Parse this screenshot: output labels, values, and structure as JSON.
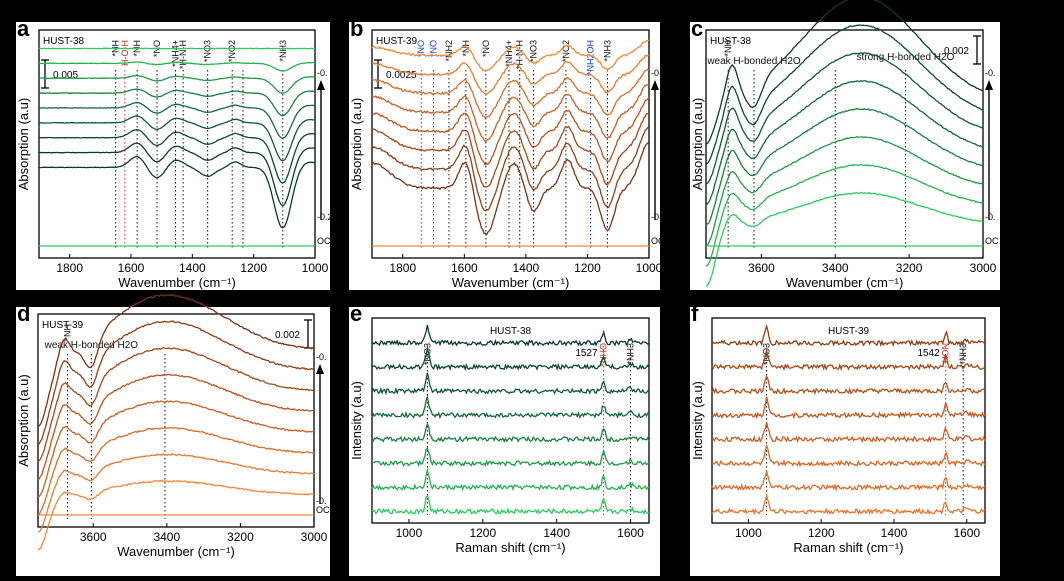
{
  "panels": [
    {
      "letter": "a",
      "tag": "HUST-38",
      "xlabel": "Wavenumber (cm⁻¹)",
      "ylabel": "Absorption (a.u)",
      "xlim": [
        1900,
        1000
      ],
      "ticks": [
        "1800",
        "1600",
        "1400",
        "1200",
        "1000"
      ],
      "scale_bar": "0.005",
      "right_labels": [
        "-0.",
        "-0.2",
        "OC"
      ],
      "peak_lines": [
        {
          "x": 1650,
          "label": "*NH",
          "color": "#111111"
        },
        {
          "x": 1620,
          "label": "H-O-H",
          "color": "#c0302a"
        },
        {
          "x": 1580,
          "label": "*NH",
          "color": "#111111"
        },
        {
          "x": 1515,
          "label": "*NO",
          "color": "#111111"
        },
        {
          "x": 1455,
          "label": "*NH4+",
          "color": "#111111"
        },
        {
          "x": 1430,
          "label": "*H-N-H",
          "color": "#111111"
        },
        {
          "x": 1350,
          "label": "*NO3",
          "color": "#111111"
        },
        {
          "x": 1270,
          "label": "*NO2",
          "color": "#111111"
        },
        {
          "x": 1235,
          "label": "",
          "color": "#111111"
        },
        {
          "x": 1105,
          "label": "*NH3",
          "color": "#111111"
        }
      ],
      "palette": [
        "#2ecc5e",
        "#26b352",
        "#1e9a48",
        "#17803f",
        "#126a38",
        "#0f5733",
        "#0c4a2e",
        "#093c28",
        "#0b3b30"
      ]
    },
    {
      "letter": "b",
      "tag": "HUST-39",
      "xlabel": "Wavenumber (cm⁻¹)",
      "ylabel": "Absorption (a.u)",
      "xlim": [
        1900,
        1000
      ],
      "ticks": [
        "1800",
        "1600",
        "1400",
        "1200",
        "1000"
      ],
      "scale_bar": "0.0025",
      "right_labels": [
        "-0.",
        "-0.",
        "OC"
      ],
      "peak_lines": [
        {
          "x": 1740,
          "label": "*NO",
          "color": "#1d3fc4"
        },
        {
          "x": 1700,
          "label": "*NO",
          "color": "#1d3fc4"
        },
        {
          "x": 1650,
          "label": "*NH2",
          "color": "#111111"
        },
        {
          "x": 1595,
          "label": "*NH",
          "color": "#111111"
        },
        {
          "x": 1530,
          "label": "*NO",
          "color": "#111111"
        },
        {
          "x": 1455,
          "label": "*NH4+",
          "color": "#111111"
        },
        {
          "x": 1420,
          "label": "*H-N-H",
          "color": "#111111"
        },
        {
          "x": 1375,
          "label": "*NO3",
          "color": "#111111"
        },
        {
          "x": 1270,
          "label": "*NO2",
          "color": "#111111"
        },
        {
          "x": 1190,
          "label": "*NH2OH",
          "color": "#1d3fc4"
        },
        {
          "x": 1135,
          "label": "*NH3",
          "color": "#111111"
        }
      ],
      "palette": [
        "#f08a3a",
        "#e47c31",
        "#d66f29",
        "#c76223",
        "#b6561e",
        "#a24a1a",
        "#8f3f17",
        "#7a3414"
      ]
    },
    {
      "letter": "c",
      "tag": "HUST-38",
      "xlabel": "Wavenumber (cm⁻¹)",
      "ylabel": "Absorption (a.u)",
      "xlim": [
        3750,
        3000
      ],
      "ticks": [
        "3600",
        "3400",
        "3200",
        "3000"
      ],
      "scale_bar": "0.002",
      "right_labels": [
        "-0.",
        "-0.",
        "OC"
      ],
      "peak_lines": [
        {
          "x": 3690,
          "label": "*NH",
          "color": "#111111"
        },
        {
          "x": 3620,
          "label": "weak H-bonded H2O",
          "color": "#111111"
        },
        {
          "x": 3400,
          "label": "",
          "color": "#111111"
        },
        {
          "x": 3210,
          "label": "strong H-bonded H2O",
          "color": "#111111"
        }
      ],
      "palette": [
        "#2ecc5e",
        "#26b352",
        "#1e9a48",
        "#17803f",
        "#126a38",
        "#0f5733",
        "#0c4a2e",
        "#093c28"
      ]
    },
    {
      "letter": "d",
      "tag": "HUST-39",
      "xlabel": "Wavenumber (cm⁻¹)",
      "ylabel": "Absorption (a.u)",
      "xlim": [
        3750,
        3000
      ],
      "ticks": [
        "3600",
        "3400",
        "3200",
        "3000"
      ],
      "scale_bar": "0.002",
      "right_labels": [
        "-0.",
        "-0.",
        "OC"
      ],
      "peak_lines": [
        {
          "x": 3670,
          "label": "*NH",
          "color": "#111111"
        },
        {
          "x": 3605,
          "label": "weak H-bonded H2O",
          "color": "#111111"
        },
        {
          "x": 3405,
          "label": "",
          "color": "#111111"
        }
      ],
      "palette": [
        "#f08a3a",
        "#e47c31",
        "#d66f29",
        "#c76223",
        "#b6561e",
        "#a24a1a",
        "#8f3f17",
        "#7a3414"
      ]
    },
    {
      "letter": "e",
      "tag": "HUST-38",
      "xlabel": "Raman shift (cm⁻¹)",
      "ylabel": "Intensity (a.u)",
      "xlim": [
        900,
        1650
      ],
      "ticks": [
        "1000",
        "1200",
        "1400",
        "1600"
      ],
      "scale_bar": "",
      "right_labels": [],
      "peak_number": "1527",
      "peak_lines": [
        {
          "x": 1050,
          "label": "*NO3",
          "color": "#111111"
        },
        {
          "x": 1527,
          "label": "*NHO",
          "color": "#c0302a"
        },
        {
          "x": 1600,
          "label": "*NH3",
          "color": "#111111"
        }
      ],
      "palette": [
        "#2ecc5e",
        "#26b352",
        "#1e9a48",
        "#17803f",
        "#126a38",
        "#0f5733",
        "#0c4a2e",
        "#0b3b30"
      ]
    },
    {
      "letter": "f",
      "tag": "HUST-39",
      "xlabel": "Raman shift (cm⁻¹)",
      "ylabel": "Intensity (a.u)",
      "xlim": [
        900,
        1650
      ],
      "ticks": [
        "1000",
        "1200",
        "1400",
        "1600"
      ],
      "scale_bar": "",
      "right_labels": [],
      "peak_number": "1542",
      "peak_lines": [
        {
          "x": 1050,
          "label": "*NO3",
          "color": "#111111"
        },
        {
          "x": 1542,
          "label": "HON",
          "color": "#c0302a"
        },
        {
          "x": 1590,
          "label": "*NH3",
          "color": "#111111"
        }
      ],
      "palette": [
        "#e8732a",
        "#de6d26",
        "#d46723",
        "#c9601f",
        "#bd591c",
        "#b05218",
        "#a34b15",
        "#8f3f12"
      ]
    }
  ],
  "chart_data": [
    {
      "type": "line",
      "panel": "a",
      "title": "",
      "xlabel": "Wavenumber (cm⁻¹)",
      "ylabel": "Absorption (a.u)",
      "xlim": [
        1900,
        1000
      ],
      "series_count": 9,
      "features": {
        "peak_maxima": [
          1580,
          1455,
          1260
        ],
        "minima": [
          1515,
          1350,
          1105
        ]
      },
      "grid": false
    },
    {
      "type": "line",
      "panel": "b",
      "title": "",
      "xlabel": "Wavenumber (cm⁻¹)",
      "ylabel": "Absorption (a.u)",
      "xlim": [
        1900,
        1000
      ],
      "series_count": 8,
      "features": {
        "peak_maxima": [
          1595,
          1440,
          1270
        ],
        "minima": [
          1530,
          1375,
          1135
        ]
      },
      "grid": false
    },
    {
      "type": "line",
      "panel": "c",
      "title": "",
      "xlabel": "Wavenumber (cm⁻¹)",
      "ylabel": "Absorption (a.u)",
      "xlim": [
        3750,
        3000
      ],
      "series_count": 8,
      "features": {
        "broad_maximum": 3330
      },
      "grid": false
    },
    {
      "type": "line",
      "panel": "d",
      "title": "",
      "xlabel": "Wavenumber (cm⁻¹)",
      "ylabel": "Absorption (a.u)",
      "xlim": [
        3750,
        3000
      ],
      "series_count": 8,
      "features": {
        "broad_maximum": 3400
      },
      "grid": false
    },
    {
      "type": "line",
      "panel": "e",
      "title": "HUST-38",
      "xlabel": "Raman shift (cm⁻¹)",
      "ylabel": "Intensity (a.u)",
      "xlim": [
        900,
        1650
      ],
      "series_count": 8,
      "features": {
        "peaks": [
          1050,
          1527,
          1600
        ]
      },
      "grid": false
    },
    {
      "type": "line",
      "panel": "f",
      "title": "HUST-39",
      "xlabel": "Raman shift (cm⁻¹)",
      "ylabel": "Intensity (a.u)",
      "xlim": [
        900,
        1650
      ],
      "series_count": 8,
      "features": {
        "peaks": [
          1050,
          1542,
          1590
        ]
      },
      "grid": false
    }
  ]
}
